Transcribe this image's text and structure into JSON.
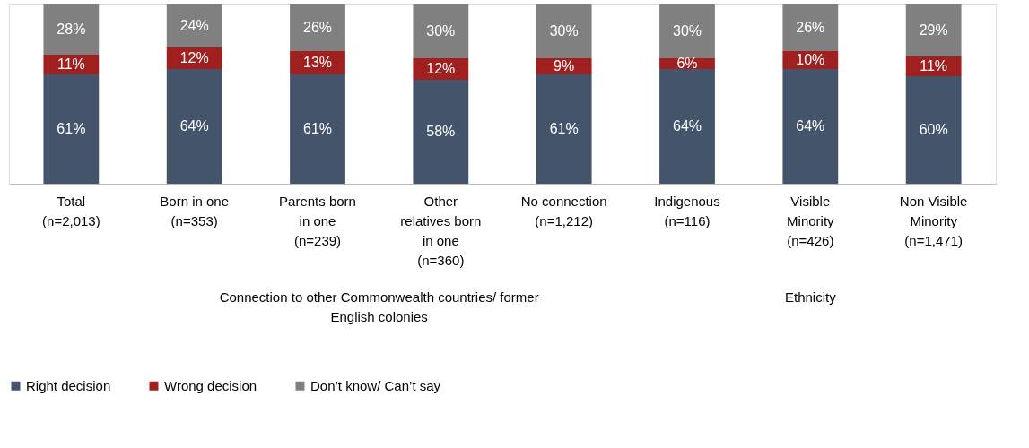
{
  "chart_data": {
    "type": "bar",
    "stacked": true,
    "legend": "bottom",
    "categories": [
      "Total (n=2,013)",
      "Born in one (n=353)",
      "Parents born in one (n=239)",
      "Other relatives born in one (n=360)",
      "No connection (n=1,212)",
      "Indigenous (n=116)",
      "Visible Minority (n=426)",
      "Non Visible Minority (n=1,471)"
    ],
    "series": [
      {
        "name": "Right decision",
        "color": "#44546a",
        "values": [
          61,
          64,
          61,
          58,
          61,
          64,
          64,
          60
        ],
        "value_labels": [
          "61%",
          "64%",
          "61%",
          "58%",
          "61%",
          "64%",
          "64%",
          "60%"
        ]
      },
      {
        "name": "Wrong decision",
        "color": "#a02020",
        "values": [
          11,
          12,
          13,
          12,
          9,
          6,
          10,
          11
        ],
        "value_labels": [
          "11%",
          "12%",
          "13%",
          "12%",
          "9%",
          "6%",
          "10%",
          "11%"
        ]
      },
      {
        "name": "Don’t know/ Can’t say",
        "color": "#808080",
        "values": [
          28,
          24,
          26,
          30,
          30,
          30,
          26,
          29
        ],
        "value_labels": [
          "28%",
          "24%",
          "26%",
          "30%",
          "30%",
          "30%",
          "26%",
          "29%"
        ]
      }
    ],
    "annotations": [
      "Connection to other Commonwealth countries/ former English colonies",
      "Ethnicity"
    ]
  }
}
